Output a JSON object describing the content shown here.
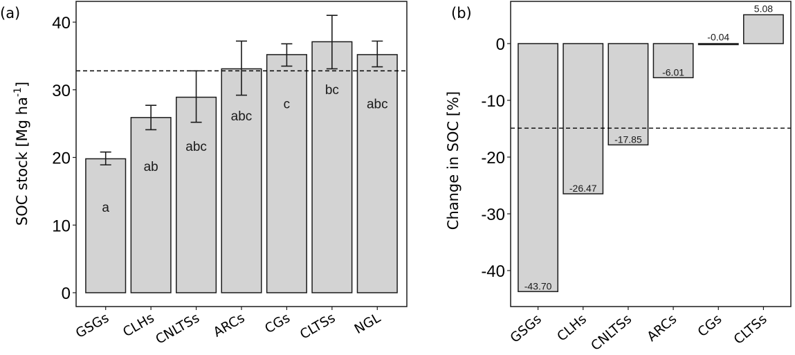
{
  "chart_data": [
    {
      "type": "bar",
      "panel_label": "(a)",
      "title": "",
      "xlabel": "",
      "ylabel": "SOC  stock [Mg ha",
      "ylabel_superscript": "-1",
      "ylabel_close": "]",
      "ylim": [
        -2,
        43
      ],
      "yticks": [
        0,
        10,
        20,
        30,
        40
      ],
      "ytick_labels": [
        "0",
        "10",
        "20",
        "30",
        "40"
      ],
      "categories": [
        "GSGs",
        "CLHs",
        "CNLTSs",
        "ARCs",
        "CGs",
        "CLTSs",
        "NGL"
      ],
      "values": [
        19.8,
        25.9,
        28.9,
        33.1,
        35.2,
        37.1,
        35.2
      ],
      "error_low": [
        18.9,
        24.1,
        25.2,
        29.2,
        33.5,
        33.1,
        33.4
      ],
      "error_high": [
        20.8,
        27.7,
        32.8,
        37.2,
        36.8,
        41.0,
        37.2
      ],
      "letters": [
        "a",
        "ab",
        "abc",
        "abc",
        "c",
        "bc",
        "abc"
      ],
      "letter_y": [
        12.7,
        18.7,
        21.7,
        26.2,
        28.0,
        30.1,
        28.0
      ],
      "reference_line": 32.8,
      "grid": false,
      "colors": {
        "bar_fill": "#d3d3d3",
        "bar_stroke": "#1a1a1a"
      }
    },
    {
      "type": "bar",
      "panel_label": "(b)",
      "title": "",
      "xlabel": "",
      "ylabel": "Change in SOC [%]",
      "ylim": [
        -46.5,
        7.7
      ],
      "yticks": [
        0,
        -10,
        -20,
        -30,
        -40
      ],
      "ytick_labels": [
        "0",
        "-10",
        "-20",
        "-30",
        "-40"
      ],
      "categories": [
        "GSGs",
        "CLHs",
        "CNLTSs",
        "ARCs",
        "CGs",
        "CLTSs"
      ],
      "values": [
        -43.7,
        -26.47,
        -17.85,
        -6.01,
        -0.04,
        5.08
      ],
      "value_labels": [
        "-43.70",
        "-26.47",
        "-17.85",
        "-6.01",
        "-0.04",
        "5.08"
      ],
      "reference_line": -14.9,
      "grid": false,
      "colors": {
        "bar_fill": "#d3d3d3",
        "bar_stroke": "#1a1a1a"
      }
    }
  ]
}
